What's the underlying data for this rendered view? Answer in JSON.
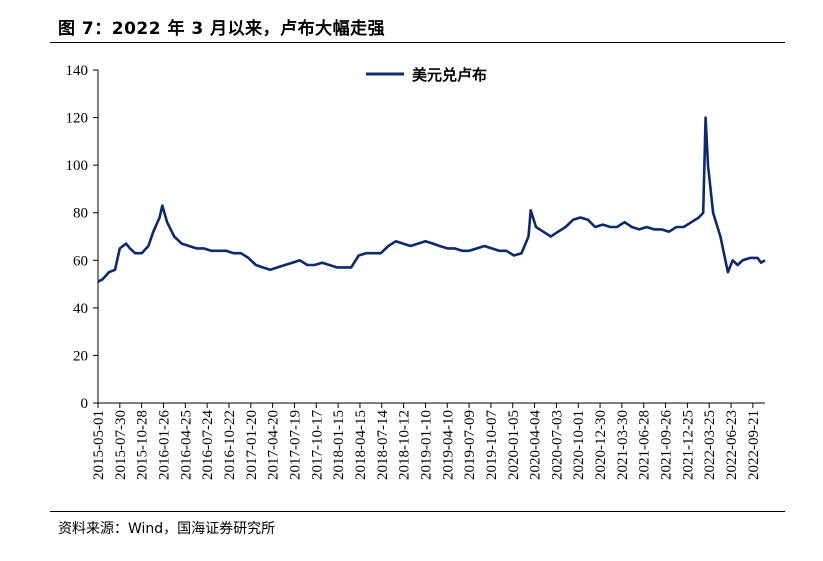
{
  "header": {
    "title": "图 7：2022 年 3 月以来，卢布大幅走强"
  },
  "footer": {
    "source": "资料来源：Wind，国海证券研究所"
  },
  "colors": {
    "series": "#0d2a6b",
    "axis": "#000000"
  },
  "chart_data": {
    "type": "line",
    "title": "图 7：2022 年 3 月以来，卢布大幅走强",
    "xlabel": "",
    "ylabel": "",
    "ylim": [
      0,
      140
    ],
    "yticks": [
      0,
      20,
      40,
      60,
      80,
      100,
      120,
      140
    ],
    "xlim": [
      "2015-05-01",
      "2022-11-10"
    ],
    "xticks": [
      "2015-05-01",
      "2015-07-30",
      "2015-10-28",
      "2016-01-26",
      "2016-04-25",
      "2016-07-24",
      "2016-10-22",
      "2017-01-20",
      "2017-04-20",
      "2017-07-19",
      "2017-10-17",
      "2018-01-15",
      "2018-04-15",
      "2018-07-14",
      "2018-10-12",
      "2019-01-10",
      "2019-04-10",
      "2019-07-09",
      "2019-10-07",
      "2020-01-05",
      "2020-04-04",
      "2020-07-03",
      "2020-10-01",
      "2020-12-30",
      "2021-03-30",
      "2021-06-28",
      "2021-09-26",
      "2021-12-25",
      "2022-03-25",
      "2022-06-23",
      "2022-09-21"
    ],
    "grid": false,
    "legend": {
      "position": "top-center",
      "entries": [
        "美元兑卢布"
      ]
    },
    "series": [
      {
        "name": "美元兑卢布",
        "x": [
          "2015-05-01",
          "2015-05-20",
          "2015-06-15",
          "2015-07-10",
          "2015-07-30",
          "2015-08-25",
          "2015-09-10",
          "2015-10-01",
          "2015-10-28",
          "2015-11-25",
          "2015-12-15",
          "2016-01-10",
          "2016-01-21",
          "2016-02-10",
          "2016-03-10",
          "2016-04-10",
          "2016-05-10",
          "2016-06-10",
          "2016-07-10",
          "2016-08-10",
          "2016-09-10",
          "2016-10-10",
          "2016-11-10",
          "2016-12-10",
          "2017-01-10",
          "2017-02-10",
          "2017-03-10",
          "2017-04-10",
          "2017-05-10",
          "2017-06-10",
          "2017-07-10",
          "2017-08-10",
          "2017-09-10",
          "2017-10-10",
          "2017-11-10",
          "2017-12-10",
          "2018-01-10",
          "2018-02-10",
          "2018-03-10",
          "2018-04-10",
          "2018-05-10",
          "2018-06-10",
          "2018-07-10",
          "2018-08-10",
          "2018-09-10",
          "2018-10-10",
          "2018-11-10",
          "2018-12-10",
          "2019-01-10",
          "2019-02-10",
          "2019-03-10",
          "2019-04-10",
          "2019-05-10",
          "2019-06-10",
          "2019-07-10",
          "2019-08-10",
          "2019-09-10",
          "2019-10-10",
          "2019-11-10",
          "2019-12-10",
          "2020-01-10",
          "2020-02-10",
          "2020-03-10",
          "2020-03-19",
          "2020-04-10",
          "2020-05-10",
          "2020-06-10",
          "2020-07-10",
          "2020-08-10",
          "2020-09-10",
          "2020-10-10",
          "2020-11-10",
          "2020-12-10",
          "2021-01-10",
          "2021-02-10",
          "2021-03-10",
          "2021-04-10",
          "2021-05-10",
          "2021-06-10",
          "2021-07-10",
          "2021-08-10",
          "2021-09-10",
          "2021-10-10",
          "2021-11-10",
          "2021-12-10",
          "2022-01-10",
          "2022-02-10",
          "2022-02-28",
          "2022-03-10",
          "2022-03-20",
          "2022-04-10",
          "2022-05-10",
          "2022-06-10",
          "2022-06-30",
          "2022-07-20",
          "2022-08-10",
          "2022-09-10",
          "2022-10-10",
          "2022-10-25",
          "2022-11-10"
        ],
        "values": [
          51,
          52,
          55,
          56,
          65,
          67,
          65,
          63,
          63,
          66,
          72,
          78,
          83,
          76,
          70,
          67,
          66,
          65,
          65,
          64,
          64,
          64,
          63,
          63,
          61,
          58,
          57,
          56,
          57,
          58,
          59,
          60,
          58,
          58,
          59,
          58,
          57,
          57,
          57,
          62,
          63,
          63,
          63,
          66,
          68,
          67,
          66,
          67,
          68,
          67,
          66,
          65,
          65,
          64,
          64,
          65,
          66,
          65,
          64,
          64,
          62,
          63,
          70,
          81,
          74,
          72,
          70,
          72,
          74,
          77,
          78,
          77,
          74,
          75,
          74,
          74,
          76,
          74,
          73,
          74,
          73,
          73,
          72,
          74,
          74,
          76,
          78,
          80,
          120,
          100,
          80,
          70,
          55,
          60,
          58,
          60,
          61,
          61,
          59,
          60
        ]
      }
    ]
  }
}
